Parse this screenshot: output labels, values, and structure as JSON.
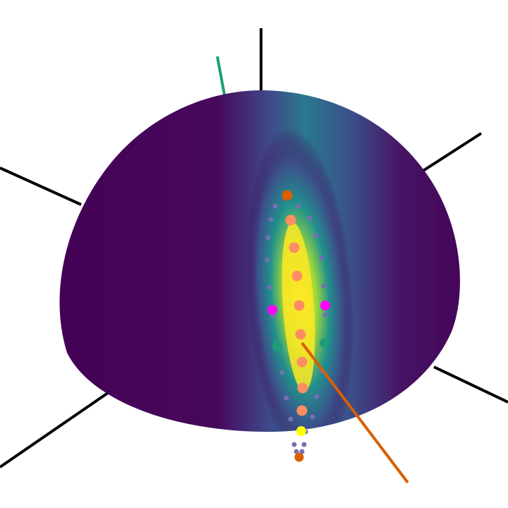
{
  "scene": {
    "description_free": true,
    "surface": {
      "shape": "hemisphere-cap",
      "colormap": "viridis",
      "colors": {
        "low": "#440154",
        "mid_low": "#3b528b",
        "mid": "#21918c",
        "mid_high": "#5ec962",
        "high": "#fde725"
      }
    },
    "axes": {
      "line_color": "#000000",
      "accent_axis_color": "#1b9e77",
      "vector_color": "#d95f02"
    },
    "markers": {
      "center_line_color": "#fc8d62",
      "end_marker_color": "#d95f02",
      "side_marker_color": "#ff00ff",
      "mid_side_marker_color": "#1b9e77",
      "tip_marker_color": "#ffff00",
      "dot_color": "#7570b3",
      "center_line_count": 8,
      "side_dot_pairs": 14
    }
  }
}
